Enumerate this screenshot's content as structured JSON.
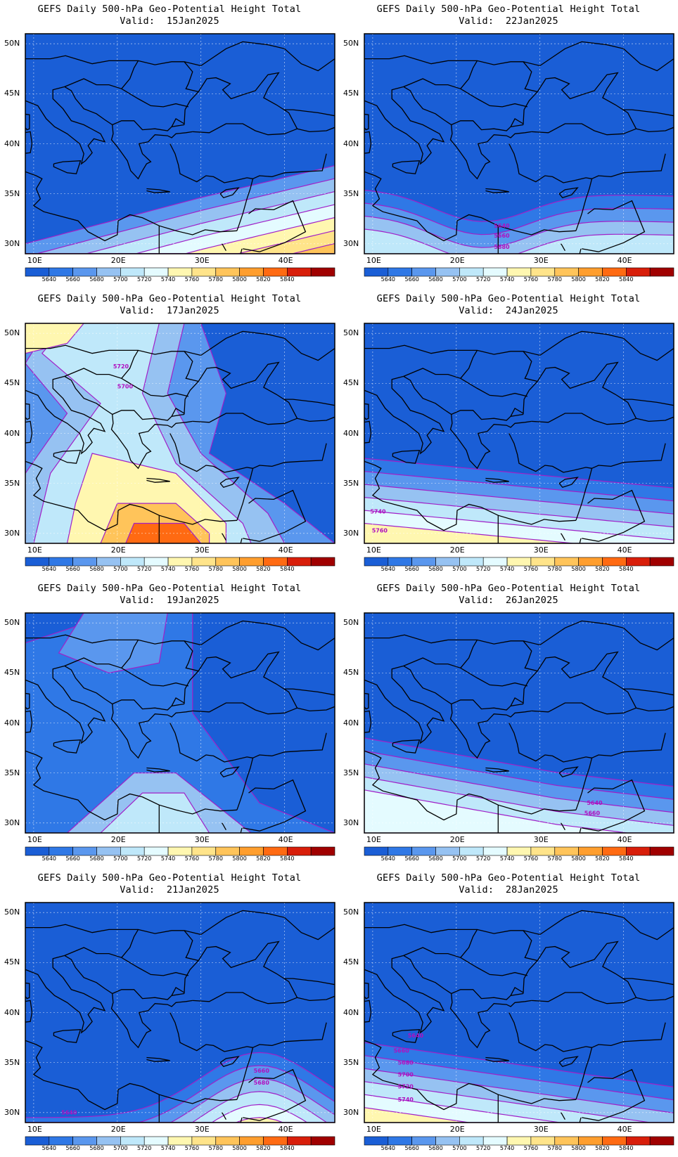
{
  "figure": {
    "variable_title": "GEFS Daily 500-hPa Geo-Potential Height Total",
    "valid_prefix": "Valid:",
    "lat_labels": [
      "50N",
      "45N",
      "40N",
      "35N",
      "30N"
    ],
    "lon_labels": [
      "10E",
      "20E",
      "30E",
      "40E"
    ],
    "colorbar_labels": [
      "5640",
      "5660",
      "5680",
      "5700",
      "5720",
      "5740",
      "5760",
      "5780",
      "5800",
      "5820",
      "5840"
    ],
    "colorbar_colors": [
      "#1a5ed6",
      "#2f78e6",
      "#5a97ee",
      "#96c2f2",
      "#bfe8fa",
      "#e4fbff",
      "#fff7b0",
      "#ffe48a",
      "#ffc45a",
      "#ff9e2e",
      "#ff6a12",
      "#d81e0a",
      "#a00000"
    ]
  },
  "panels": [
    {
      "id": "p1",
      "date": "15Jan2025",
      "contour_labels": []
    },
    {
      "id": "p2",
      "date": "22Jan2025",
      "contour_labels": [
        "5640",
        "5660",
        "5680"
      ]
    },
    {
      "id": "p3",
      "date": "17Jan2025",
      "contour_labels": [
        "5720",
        "5700"
      ]
    },
    {
      "id": "p4",
      "date": "24Jan2025",
      "contour_labels": [
        "5740",
        "5760"
      ]
    },
    {
      "id": "p5",
      "date": "19Jan2025",
      "contour_labels": []
    },
    {
      "id": "p6",
      "date": "26Jan2025",
      "contour_labels": [
        "5640",
        "5660"
      ]
    },
    {
      "id": "p7",
      "date": "21Jan2025",
      "contour_labels": [
        "5660",
        "5680",
        "5640"
      ]
    },
    {
      "id": "p8",
      "date": "28Jan2025",
      "contour_labels": [
        "5640",
        "5660",
        "5680",
        "5700",
        "5720",
        "5740"
      ]
    }
  ]
}
